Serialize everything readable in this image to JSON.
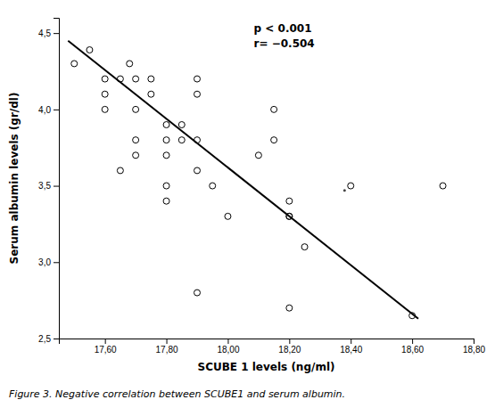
{
  "chart_data": {
    "type": "scatter",
    "x_label": "SCUBE 1 levels (ng/ml)",
    "y_label": "Serum albumin levels (gr/dl)",
    "caption": "Figure 3. Negative correlation between SCUBE1 and serum albumin.",
    "annotations": [
      "p < 0.001",
      "r= −0.504"
    ],
    "series": [
      {
        "type": "scatter",
        "marker": "open-circle",
        "color": "#000000",
        "x": [
          17.5,
          17.55,
          17.6,
          17.6,
          17.6,
          17.65,
          17.65,
          17.68,
          17.7,
          17.7,
          17.7,
          17.7,
          17.75,
          17.75,
          17.8,
          17.8,
          17.8,
          17.8,
          17.8,
          17.85,
          17.85,
          17.9,
          17.9,
          17.9,
          17.9,
          17.9,
          17.95,
          18.0,
          18.1,
          18.15,
          18.15,
          18.2,
          18.2,
          18.2,
          18.2,
          18.25,
          18.4,
          18.6,
          18.7
        ],
        "values": [
          4.3,
          4.39,
          4.2,
          4.1,
          4.0,
          4.2,
          3.6,
          4.3,
          4.2,
          4.0,
          3.8,
          3.7,
          4.2,
          4.1,
          3.9,
          3.8,
          3.7,
          3.5,
          3.4,
          3.9,
          3.8,
          4.2,
          4.1,
          3.8,
          3.6,
          2.8,
          3.5,
          3.3,
          3.7,
          4.0,
          3.8,
          3.4,
          3.3,
          3.3,
          2.7,
          3.1,
          3.5,
          2.65,
          3.5
        ]
      },
      {
        "type": "line",
        "line_style": "solid",
        "color": "#000000",
        "x": [
          17.48,
          18.62
        ],
        "values": [
          4.45,
          2.63
        ]
      },
      {
        "type": "scatter",
        "marker": "dot",
        "color": "#444444",
        "x": [
          18.38
        ],
        "values": [
          3.47
        ]
      }
    ],
    "xlim": [
      17.45,
      18.8
    ],
    "ylim": [
      2.5,
      4.6
    ],
    "xticks": [
      {
        "value": 17.6,
        "label": "17,60"
      },
      {
        "value": 17.8,
        "label": "17,80"
      },
      {
        "value": 18.0,
        "label": "18,00"
      },
      {
        "value": 18.2,
        "label": "18,20"
      },
      {
        "value": 18.4,
        "label": "18,40"
      },
      {
        "value": 18.6,
        "label": "18,60"
      },
      {
        "value": 18.8,
        "label": "18,80"
      }
    ],
    "yticks": [
      {
        "value": 2.5,
        "label": "2,5"
      },
      {
        "value": 3.0,
        "label": "3,0"
      },
      {
        "value": 3.5,
        "label": "3,5"
      },
      {
        "value": 4.0,
        "label": "4,0"
      },
      {
        "value": 4.5,
        "label": "4,5"
      }
    ],
    "grid": false
  }
}
